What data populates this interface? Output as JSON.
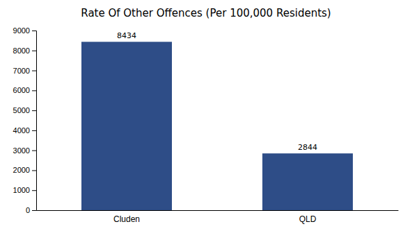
{
  "chart_data": {
    "type": "bar",
    "title": "Rate Of Other Offences (Per 100,000 Residents)",
    "categories": [
      "Cluden",
      "QLD"
    ],
    "values": [
      8434,
      2844
    ],
    "color": "#2e4d87",
    "ylim": [
      0,
      9000
    ],
    "yticks": [
      0,
      1000,
      2000,
      3000,
      4000,
      5000,
      6000,
      7000,
      8000,
      9000
    ],
    "data_labels": true,
    "grid": false
  }
}
